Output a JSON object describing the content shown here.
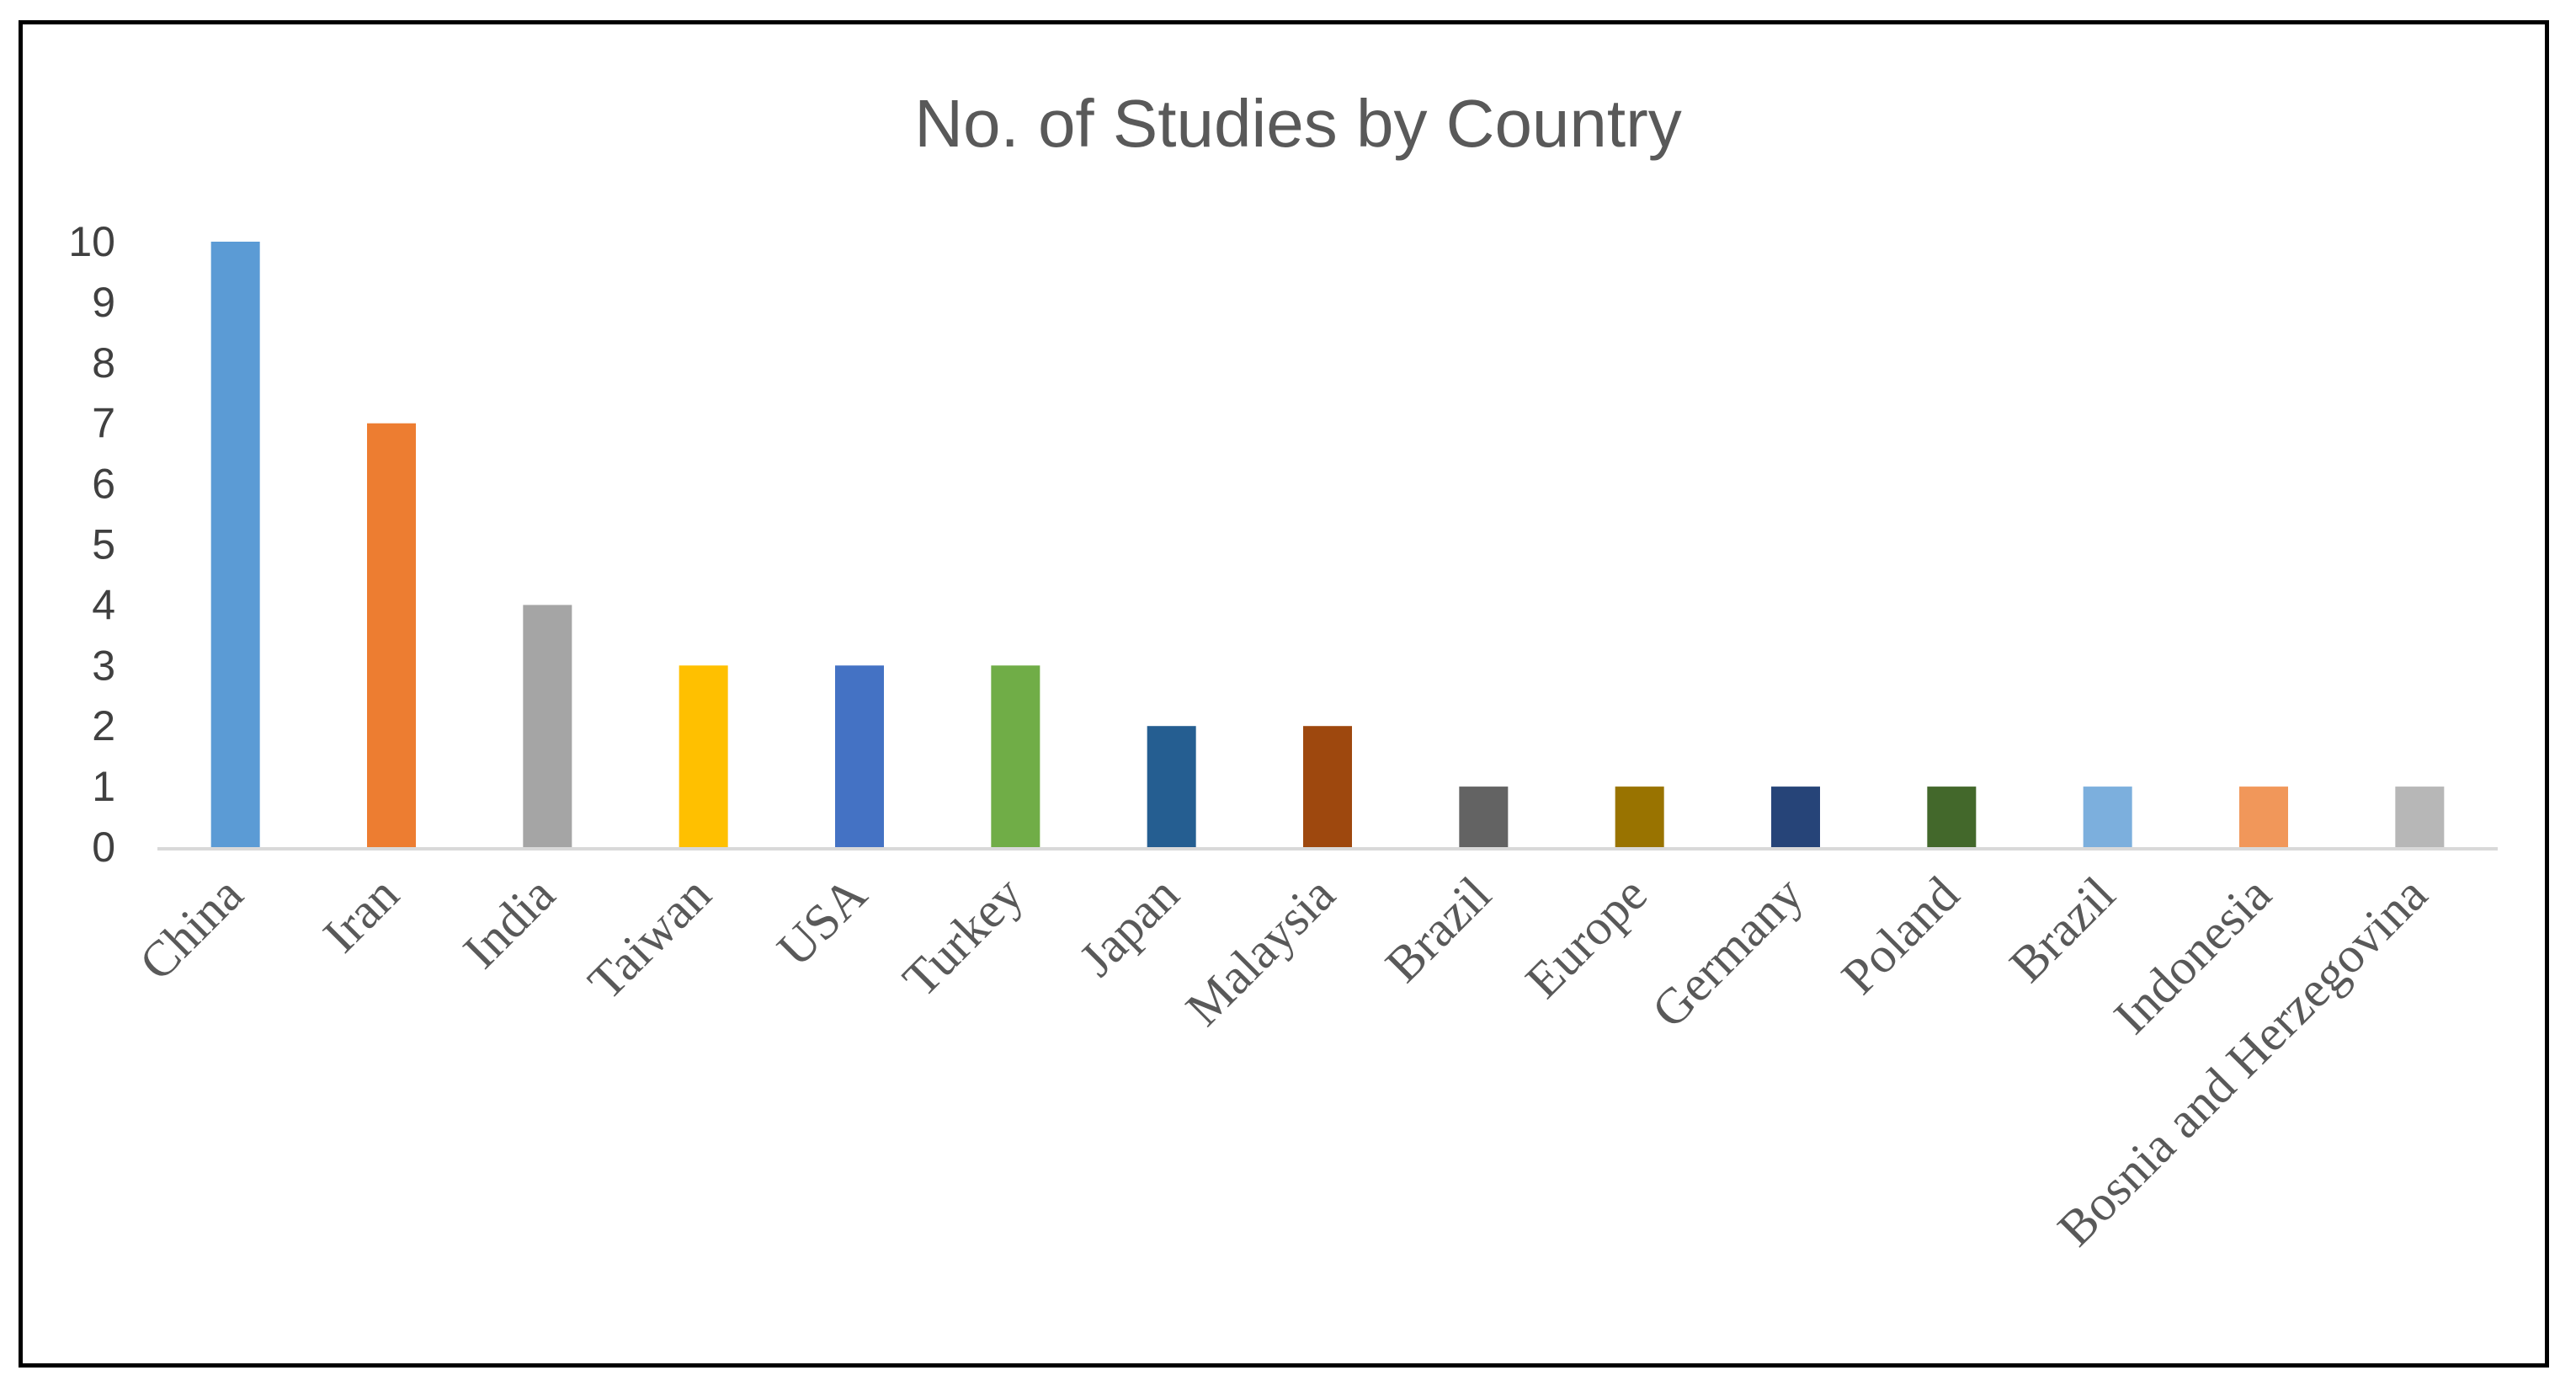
{
  "chart_data": {
    "type": "bar",
    "title": "No. of Studies by Country",
    "xlabel": "",
    "ylabel": "",
    "ylim": [
      0,
      10
    ],
    "yticks": [
      "0",
      "1",
      "2",
      "3",
      "4",
      "5",
      "6",
      "7",
      "8",
      "9",
      "10"
    ],
    "grid": false,
    "legend": "none",
    "categories": [
      "China",
      "Iran",
      "India",
      "Taiwan",
      "USA",
      "Turkey",
      "Japan",
      "Malaysia",
      "Brazil",
      "Europe",
      "Germany",
      "Poland",
      "Brazil",
      "Indonesia",
      "Bosnia and Herzegovina"
    ],
    "values": [
      10,
      7,
      4,
      3,
      3,
      3,
      2,
      2,
      1,
      1,
      1,
      1,
      1,
      1,
      1
    ],
    "colors": [
      "#5B9BD5",
      "#ED7D31",
      "#A5A5A5",
      "#FFC000",
      "#4472C4",
      "#70AD47",
      "#255E91",
      "#9E480E",
      "#636363",
      "#997300",
      "#264478",
      "#43682B",
      "#7CAFDD",
      "#F1975A",
      "#B7B7B7"
    ],
    "axis_color": "#D9D9D9"
  }
}
